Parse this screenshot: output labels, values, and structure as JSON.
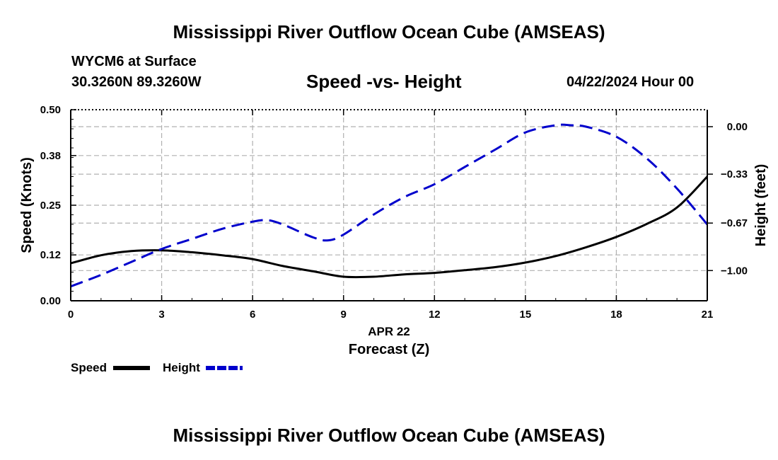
{
  "header": {
    "title": "Mississippi River Outflow Ocean Cube (AMSEAS)",
    "station": "WYCM6 at Surface",
    "location": "30.3260N  89.3260W",
    "datetime": "04/22/2024 Hour 00"
  },
  "footer": {
    "title": "Mississippi River Outflow Ocean Cube (AMSEAS)"
  },
  "chart_data": {
    "type": "line",
    "title": "Speed -vs- Height",
    "xlabel": "Forecast (Z)",
    "date_label": "APR 22",
    "ylabel_left": "Speed (Knots)",
    "ylabel_right": "Height (feet)",
    "xlim": [
      0,
      21
    ],
    "x_ticks": [
      "0",
      "3",
      "6",
      "9",
      "12",
      "15",
      "18",
      "21"
    ],
    "y_left_lim": [
      0,
      0.5
    ],
    "y_left_ticks": [
      "0.00",
      "0.12",
      "0.25",
      "0.38",
      "0.50"
    ],
    "y_right_ticks": [
      "0.00",
      "−0.33",
      "−0.67",
      "−1.00"
    ],
    "colors": {
      "speed": "#000000",
      "height": "#0000cc"
    },
    "legend": {
      "placement": "bottom-left",
      "speed": "Speed",
      "height": "Height"
    },
    "series": [
      {
        "name": "Speed",
        "axis": "left",
        "style": "solid",
        "x": [
          0,
          1,
          2,
          3,
          4,
          5,
          6,
          7,
          8,
          9,
          10,
          11,
          12,
          13,
          14,
          15,
          16,
          17,
          18,
          19,
          20,
          21
        ],
        "values": [
          0.098,
          0.119,
          0.13,
          0.132,
          0.127,
          0.119,
          0.109,
          0.091,
          0.077,
          0.063,
          0.063,
          0.069,
          0.073,
          0.08,
          0.088,
          0.1,
          0.117,
          0.14,
          0.167,
          0.201,
          0.244,
          0.325
        ]
      },
      {
        "name": "Height",
        "axis": "right",
        "style": "dashed",
        "x": [
          0,
          1,
          2,
          3,
          4,
          5,
          6,
          6.5,
          7,
          8,
          8.5,
          9,
          10,
          11,
          12,
          13,
          14,
          15,
          16,
          16.5,
          17,
          18,
          19,
          20,
          21
        ],
        "values": [
          -1.11,
          -1.03,
          -0.94,
          -0.85,
          -0.78,
          -0.71,
          -0.66,
          -0.65,
          -0.68,
          -0.77,
          -0.79,
          -0.75,
          -0.61,
          -0.49,
          -0.4,
          -0.28,
          -0.16,
          -0.04,
          0.01,
          0.01,
          0.0,
          -0.07,
          -0.22,
          -0.43,
          -0.68
        ]
      }
    ]
  }
}
